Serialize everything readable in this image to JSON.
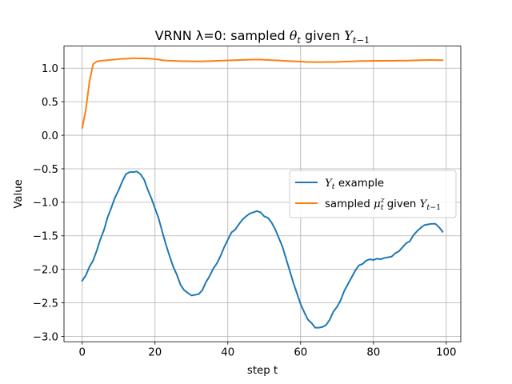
{
  "chart_data": {
    "type": "line",
    "title": {
      "prefix": "VRNN λ=0: sampled ",
      "theta": "θ",
      "theta_sub": "t",
      "mid": " given ",
      "Y": "Y",
      "Y_sub": "t",
      "Y_sub_op": "−",
      "Y_sub_num": "1"
    },
    "xlabel": "step t",
    "ylabel": "Value",
    "xlim": [
      -5,
      104
    ],
    "ylim": [
      -3.08,
      1.33
    ],
    "xticks": [
      0,
      20,
      40,
      60,
      80,
      100
    ],
    "xtick_labels": [
      "0",
      "20",
      "40",
      "60",
      "80",
      "100"
    ],
    "yticks": [
      -3.0,
      -2.5,
      -2.0,
      -1.5,
      -1.0,
      -0.5,
      0.0,
      0.5,
      1.0
    ],
    "ytick_labels": [
      "−3.0",
      "−2.5",
      "−2.0",
      "−1.5",
      "−1.0",
      "−0.5",
      "0.0",
      "0.5",
      "1.0"
    ],
    "grid": true,
    "legend_position": "center-right",
    "series": [
      {
        "key": "yt",
        "legend": {
          "Y": "Y",
          "sub": "t",
          "rest": " example"
        },
        "color": "#1f77b4",
        "x": [
          0,
          1,
          2,
          3,
          4,
          5,
          6,
          7,
          8,
          9,
          10,
          11,
          12,
          13,
          14,
          15,
          16,
          17,
          18,
          19,
          20,
          21,
          22,
          23,
          24,
          25,
          26,
          27,
          28,
          29,
          30,
          31,
          32,
          33,
          34,
          35,
          36,
          37,
          38,
          39,
          40,
          41,
          42,
          43,
          44,
          45,
          46,
          47,
          48,
          49,
          50,
          51,
          52,
          53,
          54,
          55,
          56,
          57,
          58,
          59,
          60,
          61,
          62,
          63,
          64,
          65,
          66,
          67,
          68,
          69,
          70,
          71,
          72,
          73,
          74,
          75,
          76,
          77,
          78,
          79,
          80,
          81,
          82,
          83,
          84,
          85,
          86,
          87,
          88,
          89,
          90,
          91,
          92,
          93,
          94,
          95,
          96,
          97,
          98,
          99
        ],
        "y": [
          -2.17,
          -2.09,
          -1.96,
          -1.87,
          -1.72,
          -1.55,
          -1.41,
          -1.22,
          -1.08,
          -0.93,
          -0.82,
          -0.69,
          -0.58,
          -0.55,
          -0.55,
          -0.54,
          -0.58,
          -0.66,
          -0.81,
          -0.94,
          -1.09,
          -1.24,
          -1.44,
          -1.63,
          -1.8,
          -1.96,
          -2.08,
          -2.23,
          -2.31,
          -2.35,
          -2.39,
          -2.38,
          -2.37,
          -2.31,
          -2.19,
          -2.1,
          -1.99,
          -1.91,
          -1.8,
          -1.67,
          -1.56,
          -1.45,
          -1.41,
          -1.33,
          -1.26,
          -1.21,
          -1.17,
          -1.15,
          -1.13,
          -1.15,
          -1.21,
          -1.23,
          -1.3,
          -1.4,
          -1.53,
          -1.66,
          -1.84,
          -2.02,
          -2.2,
          -2.36,
          -2.52,
          -2.64,
          -2.75,
          -2.8,
          -2.87,
          -2.87,
          -2.86,
          -2.83,
          -2.75,
          -2.63,
          -2.56,
          -2.46,
          -2.32,
          -2.22,
          -2.12,
          -2.02,
          -1.94,
          -1.92,
          -1.87,
          -1.85,
          -1.86,
          -1.84,
          -1.85,
          -1.83,
          -1.82,
          -1.81,
          -1.76,
          -1.73,
          -1.67,
          -1.61,
          -1.58,
          -1.49,
          -1.43,
          -1.38,
          -1.34,
          -1.33,
          -1.32,
          -1.32,
          -1.37,
          -1.44
        ]
      },
      {
        "key": "mu",
        "legend": {
          "prefix": "sampled ",
          "mu": "μ",
          "sup": "z",
          "sub": "t",
          "mid": " given ",
          "Y": "Y",
          "Y_sub_t": "t",
          "Y_sub_op": "−",
          "Y_sub_num": "1"
        },
        "color": "#ff7f0e",
        "x": [
          0,
          1,
          2,
          3,
          4,
          5,
          6,
          7,
          8,
          9,
          10,
          11,
          12,
          13,
          14,
          15,
          16,
          17,
          18,
          19,
          20,
          21,
          22,
          23,
          24,
          25,
          26,
          27,
          28,
          29,
          30,
          31,
          32,
          33,
          34,
          35,
          36,
          37,
          38,
          39,
          40,
          41,
          42,
          43,
          44,
          45,
          46,
          47,
          48,
          49,
          50,
          51,
          52,
          53,
          54,
          55,
          56,
          57,
          58,
          59,
          60,
          61,
          62,
          63,
          64,
          65,
          66,
          67,
          68,
          69,
          70,
          71,
          72,
          73,
          74,
          75,
          76,
          77,
          78,
          79,
          80,
          81,
          82,
          83,
          84,
          85,
          86,
          87,
          88,
          89,
          90,
          91,
          92,
          93,
          94,
          95,
          96,
          97,
          98,
          99
        ],
        "y": [
          0.11,
          0.38,
          0.8,
          1.06,
          1.1,
          1.11,
          1.115,
          1.12,
          1.125,
          1.13,
          1.135,
          1.14,
          1.14,
          1.145,
          1.15,
          1.148,
          1.147,
          1.146,
          1.145,
          1.14,
          1.135,
          1.13,
          1.12,
          1.115,
          1.112,
          1.11,
          1.108,
          1.106,
          1.105,
          1.104,
          1.103,
          1.102,
          1.102,
          1.103,
          1.104,
          1.106,
          1.108,
          1.11,
          1.112,
          1.114,
          1.116,
          1.118,
          1.12,
          1.122,
          1.124,
          1.126,
          1.127,
          1.128,
          1.129,
          1.128,
          1.126,
          1.124,
          1.12,
          1.118,
          1.115,
          1.112,
          1.109,
          1.106,
          1.103,
          1.1,
          1.098,
          1.095,
          1.093,
          1.092,
          1.091,
          1.091,
          1.091,
          1.092,
          1.092,
          1.093,
          1.094,
          1.096,
          1.098,
          1.1,
          1.102,
          1.104,
          1.106,
          1.107,
          1.108,
          1.109,
          1.11,
          1.11,
          1.11,
          1.11,
          1.11,
          1.11,
          1.112,
          1.113,
          1.114,
          1.114,
          1.115,
          1.116,
          1.118,
          1.12,
          1.121,
          1.122,
          1.122,
          1.121,
          1.121,
          1.12
        ]
      }
    ]
  }
}
